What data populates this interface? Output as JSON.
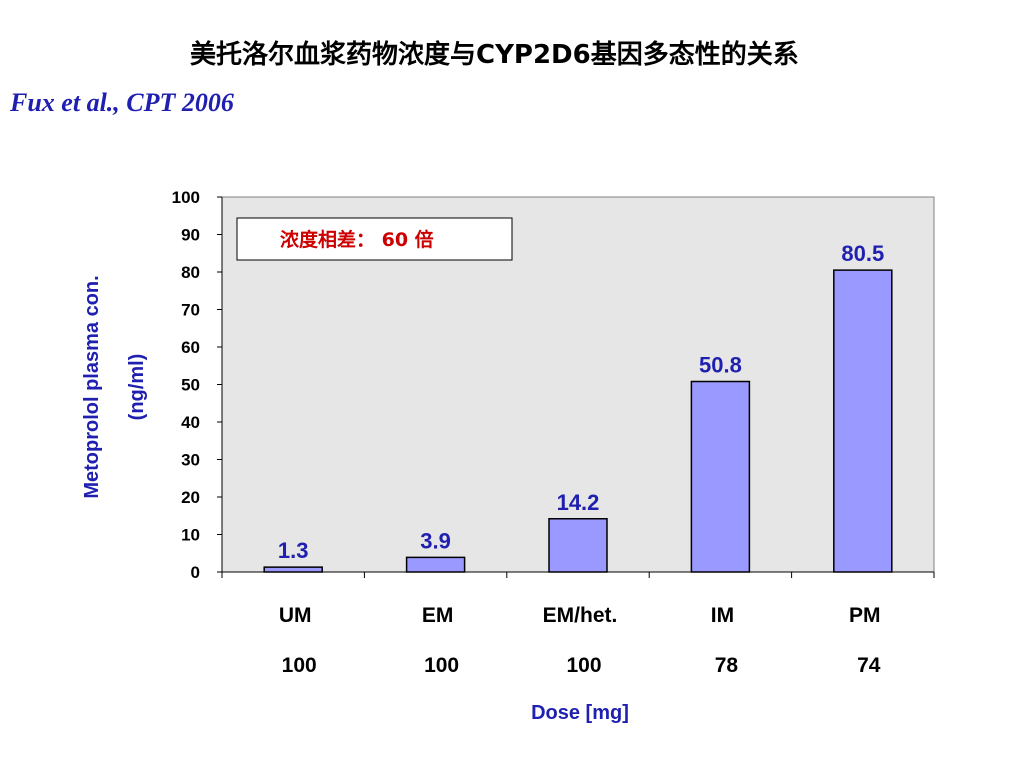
{
  "page": {
    "title": "美托洛尔血浆药物浓度与CYP2D6基因多态性的关系",
    "citation": "Fux et al., CPT 2006"
  },
  "colors": {
    "bar_fill": "#9999ff",
    "bar_stroke": "#000000",
    "plot_bg": "#e6e6e6",
    "label_blue": "#1f1fb0",
    "annotation_red": "#cc0000"
  },
  "chart_data": {
    "type": "bar",
    "categories": [
      "UM",
      "EM",
      "EM/het.",
      "IM",
      "PM"
    ],
    "doses": [
      "100",
      "100",
      "100",
      "78",
      "74"
    ],
    "values": [
      1.3,
      3.9,
      14.2,
      50.8,
      80.5
    ],
    "data_labels": [
      "1.3",
      "3.9",
      "14.2",
      "50.8",
      "80.5"
    ],
    "ylabel_line1": "Metoprolol plasma con.",
    "ylabel_line2": "(ng/ml)",
    "xlabel": "Dose [mg]",
    "ylim": [
      0,
      100
    ],
    "yticks": [
      "0",
      "10",
      "20",
      "30",
      "40",
      "50",
      "60",
      "70",
      "80",
      "90",
      "100"
    ],
    "annotation": "浓度相差： 60 倍",
    "grid": false
  }
}
